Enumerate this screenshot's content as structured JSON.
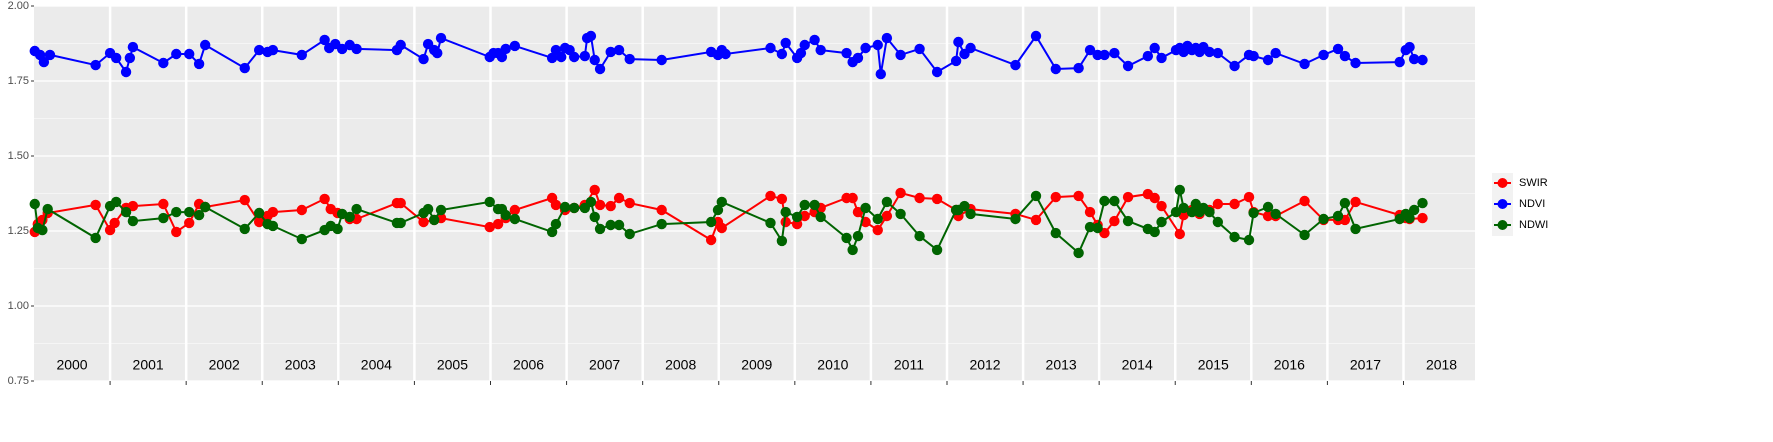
{
  "chart_data": {
    "type": "line",
    "xlim": [
      2000.0,
      2018.94
    ],
    "xticks": [
      2001,
      2002,
      2003,
      2004,
      2005,
      2006,
      2007,
      2008,
      2009,
      2010,
      2011,
      2012,
      2013,
      2014,
      2015,
      2016,
      2017,
      2018
    ],
    "year_labels": [
      {
        "value": 2000.5,
        "label": "2000"
      },
      {
        "value": 2001.5,
        "label": "2001"
      },
      {
        "value": 2002.5,
        "label": "2002"
      },
      {
        "value": 2003.5,
        "label": "2003"
      },
      {
        "value": 2004.5,
        "label": "2004"
      },
      {
        "value": 2005.5,
        "label": "2005"
      },
      {
        "value": 2006.5,
        "label": "2006"
      },
      {
        "value": 2007.5,
        "label": "2007"
      },
      {
        "value": 2008.5,
        "label": "2008"
      },
      {
        "value": 2009.5,
        "label": "2009"
      },
      {
        "value": 2010.5,
        "label": "2010"
      },
      {
        "value": 2011.5,
        "label": "2011"
      },
      {
        "value": 2012.5,
        "label": "2012"
      },
      {
        "value": 2013.5,
        "label": "2013"
      },
      {
        "value": 2014.5,
        "label": "2014"
      },
      {
        "value": 2015.5,
        "label": "2015"
      },
      {
        "value": 2016.5,
        "label": "2016"
      },
      {
        "value": 2017.5,
        "label": "2017"
      },
      {
        "value": 2018.5,
        "label": "2018"
      }
    ],
    "ylim": [
      0.75,
      2.0
    ],
    "yticks": [
      0.75,
      {
        "value": 1,
        "label": "1.00"
      },
      1.25,
      {
        "value": 1.5,
        "label": "1.50"
      },
      1.75,
      {
        "value": 2,
        "label": "2.00"
      }
    ],
    "grid": true,
    "legend": "right",
    "series": [
      {
        "name": "SWIR",
        "color": "#ff0000",
        "x": [
          2000.01,
          2000.05,
          2000.11,
          2000.18,
          2000.81,
          2001.0,
          2001.06,
          2001.21,
          2001.3,
          2001.7,
          2001.87,
          2002.04,
          2002.17,
          2002.25,
          2002.77,
          2002.96,
          2003.07,
          2003.14,
          2003.52,
          2003.82,
          2003.9,
          2003.99,
          2004.15,
          2004.24,
          2004.77,
          2004.82,
          2005.12,
          2005.26,
          2005.35,
          2005.99,
          2006.1,
          2006.2,
          2006.32,
          2006.81,
          2006.86,
          2006.98,
          2007.1,
          2007.24,
          2007.37,
          2007.44,
          2007.58,
          2007.69,
          2007.83,
          2008.25,
          2008.9,
          2008.99,
          2009.04,
          2009.68,
          2009.83,
          2009.88,
          2010.03,
          2010.13,
          2010.26,
          2010.34,
          2010.68,
          2010.76,
          2010.83,
          2010.93,
          2011.09,
          2011.21,
          2011.39,
          2011.64,
          2011.87,
          2012.12,
          2012.15,
          2012.31,
          2012.9,
          2013.17,
          2013.43,
          2013.73,
          2013.88,
          2013.98,
          2014.07,
          2014.2,
          2014.38,
          2014.64,
          2014.73,
          2014.82,
          2015.06,
          2015.11,
          2015.22,
          2015.32,
          2015.45,
          2015.56,
          2015.78,
          2015.97,
          2016.03,
          2016.22,
          2016.32,
          2016.7,
          2016.95,
          2017.14,
          2017.23,
          2017.37,
          2017.95,
          2018.03,
          2018.08,
          2018.25
        ],
        "values": [
          1.247,
          1.273,
          1.287,
          1.31,
          1.337,
          1.253,
          1.277,
          1.327,
          1.333,
          1.34,
          1.247,
          1.277,
          1.34,
          1.33,
          1.353,
          1.28,
          1.3,
          1.313,
          1.32,
          1.357,
          1.323,
          1.31,
          1.29,
          1.29,
          1.343,
          1.343,
          1.28,
          1.287,
          1.293,
          1.263,
          1.273,
          1.293,
          1.32,
          1.36,
          1.337,
          1.32,
          1.327,
          1.337,
          1.387,
          1.337,
          1.333,
          1.36,
          1.343,
          1.32,
          1.22,
          1.28,
          1.26,
          1.367,
          1.357,
          1.28,
          1.273,
          1.3,
          1.313,
          1.327,
          1.36,
          1.36,
          1.313,
          1.28,
          1.253,
          1.3,
          1.377,
          1.36,
          1.357,
          1.32,
          1.3,
          1.323,
          1.307,
          1.287,
          1.363,
          1.367,
          1.313,
          1.27,
          1.243,
          1.283,
          1.363,
          1.373,
          1.36,
          1.333,
          1.24,
          1.303,
          1.32,
          1.307,
          1.32,
          1.34,
          1.34,
          1.363,
          1.313,
          1.3,
          1.3,
          1.35,
          1.287,
          1.287,
          1.287,
          1.347,
          1.303,
          1.293,
          1.29,
          1.293
        ]
      },
      {
        "name": "NDVI",
        "color": "#0000ff",
        "x": [
          2000.01,
          2000.08,
          2000.13,
          2000.21,
          2000.81,
          2001.0,
          2001.08,
          2001.21,
          2001.26,
          2001.3,
          2001.7,
          2001.87,
          2002.04,
          2002.17,
          2002.25,
          2002.77,
          2002.96,
          2003.07,
          2003.14,
          2003.52,
          2003.82,
          2003.88,
          2003.96,
          2004.05,
          2004.15,
          2004.24,
          2004.77,
          2004.82,
          2005.12,
          2005.18,
          2005.26,
          2005.3,
          2005.35,
          2005.99,
          2006.04,
          2006.1,
          2006.15,
          2006.2,
          2006.32,
          2006.81,
          2006.86,
          2006.93,
          2006.98,
          2007.04,
          2007.1,
          2007.24,
          2007.27,
          2007.32,
          2007.37,
          2007.44,
          2007.58,
          2007.69,
          2007.83,
          2008.25,
          2008.9,
          2008.99,
          2009.04,
          2009.09,
          2009.68,
          2009.83,
          2009.88,
          2010.03,
          2010.08,
          2010.13,
          2010.26,
          2010.34,
          2010.68,
          2010.76,
          2010.83,
          2010.93,
          2011.09,
          2011.13,
          2011.21,
          2011.39,
          2011.64,
          2011.87,
          2012.12,
          2012.15,
          2012.23,
          2012.31,
          2012.9,
          2013.17,
          2013.43,
          2013.73,
          2013.88,
          2013.98,
          2014.07,
          2014.2,
          2014.38,
          2014.64,
          2014.73,
          2014.82,
          2015.01,
          2015.06,
          2015.11,
          2015.16,
          2015.22,
          2015.27,
          2015.32,
          2015.37,
          2015.45,
          2015.56,
          2015.78,
          2015.97,
          2016.03,
          2016.22,
          2016.32,
          2016.7,
          2016.95,
          2017.14,
          2017.23,
          2017.37,
          2017.95,
          2018.03,
          2018.08,
          2018.14,
          2018.25
        ],
        "values": [
          1.85,
          1.837,
          1.813,
          1.837,
          1.803,
          1.843,
          1.827,
          1.78,
          1.827,
          1.863,
          1.81,
          1.84,
          1.84,
          1.807,
          1.87,
          1.793,
          1.853,
          1.847,
          1.853,
          1.837,
          1.887,
          1.86,
          1.873,
          1.857,
          1.87,
          1.857,
          1.853,
          1.87,
          1.823,
          1.873,
          1.853,
          1.843,
          1.893,
          1.83,
          1.843,
          1.843,
          1.83,
          1.857,
          1.867,
          1.827,
          1.853,
          1.83,
          1.86,
          1.853,
          1.83,
          1.833,
          1.893,
          1.9,
          1.82,
          1.79,
          1.847,
          1.853,
          1.823,
          1.82,
          1.847,
          1.837,
          1.853,
          1.84,
          1.86,
          1.84,
          1.877,
          1.827,
          1.843,
          1.87,
          1.887,
          1.853,
          1.843,
          1.813,
          1.827,
          1.86,
          1.87,
          1.773,
          1.893,
          1.837,
          1.857,
          1.78,
          1.817,
          1.88,
          1.84,
          1.86,
          1.803,
          1.9,
          1.79,
          1.793,
          1.853,
          1.837,
          1.837,
          1.843,
          1.8,
          1.833,
          1.86,
          1.827,
          1.853,
          1.86,
          1.847,
          1.867,
          1.853,
          1.86,
          1.847,
          1.863,
          1.847,
          1.843,
          1.8,
          1.837,
          1.833,
          1.82,
          1.843,
          1.807,
          1.837,
          1.857,
          1.833,
          1.81,
          1.813,
          1.853,
          1.863,
          1.823,
          1.82
        ]
      },
      {
        "name": "NDWI",
        "color": "#006400",
        "x": [
          2000.01,
          2000.05,
          2000.11,
          2000.18,
          2000.81,
          2001.0,
          2001.08,
          2001.21,
          2001.3,
          2001.7,
          2001.87,
          2002.04,
          2002.17,
          2002.25,
          2002.77,
          2002.96,
          2003.07,
          2003.14,
          2003.52,
          2003.82,
          2003.9,
          2003.99,
          2004.05,
          2004.15,
          2004.24,
          2004.77,
          2004.82,
          2005.12,
          2005.18,
          2005.26,
          2005.35,
          2005.99,
          2006.1,
          2006.15,
          2006.2,
          2006.32,
          2006.81,
          2006.86,
          2006.98,
          2007.1,
          2007.24,
          2007.32,
          2007.37,
          2007.44,
          2007.58,
          2007.69,
          2007.83,
          2008.25,
          2008.9,
          2008.99,
          2009.04,
          2009.68,
          2009.83,
          2009.88,
          2010.03,
          2010.13,
          2010.26,
          2010.34,
          2010.68,
          2010.76,
          2010.83,
          2010.93,
          2011.09,
          2011.21,
          2011.39,
          2011.64,
          2011.87,
          2012.12,
          2012.15,
          2012.23,
          2012.31,
          2012.9,
          2013.17,
          2013.43,
          2013.73,
          2013.88,
          2013.98,
          2014.07,
          2014.2,
          2014.38,
          2014.64,
          2014.73,
          2014.82,
          2015.01,
          2015.06,
          2015.11,
          2015.22,
          2015.27,
          2015.32,
          2015.37,
          2015.45,
          2015.56,
          2015.78,
          2015.97,
          2016.03,
          2016.22,
          2016.32,
          2016.7,
          2016.95,
          2017.14,
          2017.23,
          2017.37,
          2017.95,
          2018.03,
          2018.08,
          2018.14,
          2018.25
        ],
        "values": [
          1.34,
          1.26,
          1.253,
          1.323,
          1.227,
          1.333,
          1.347,
          1.313,
          1.283,
          1.293,
          1.313,
          1.313,
          1.303,
          1.33,
          1.257,
          1.31,
          1.273,
          1.267,
          1.223,
          1.253,
          1.267,
          1.257,
          1.307,
          1.297,
          1.323,
          1.277,
          1.277,
          1.31,
          1.323,
          1.287,
          1.32,
          1.347,
          1.323,
          1.323,
          1.303,
          1.29,
          1.247,
          1.273,
          1.33,
          1.327,
          1.327,
          1.347,
          1.297,
          1.257,
          1.27,
          1.27,
          1.24,
          1.273,
          1.28,
          1.32,
          1.347,
          1.277,
          1.217,
          1.313,
          1.297,
          1.337,
          1.337,
          1.297,
          1.227,
          1.187,
          1.233,
          1.327,
          1.29,
          1.347,
          1.307,
          1.233,
          1.187,
          1.32,
          1.32,
          1.333,
          1.307,
          1.29,
          1.367,
          1.243,
          1.177,
          1.263,
          1.26,
          1.35,
          1.35,
          1.283,
          1.257,
          1.247,
          1.28,
          1.313,
          1.387,
          1.327,
          1.313,
          1.34,
          1.313,
          1.327,
          1.313,
          1.28,
          1.23,
          1.22,
          1.31,
          1.33,
          1.307,
          1.237,
          1.29,
          1.3,
          1.343,
          1.257,
          1.29,
          1.307,
          1.293,
          1.32,
          1.343
        ]
      }
    ]
  }
}
